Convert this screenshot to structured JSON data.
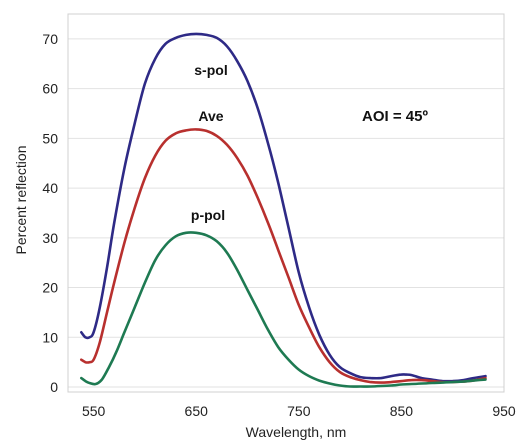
{
  "chart_data": {
    "type": "line",
    "title": "",
    "xlabel": "Wavelength, nm",
    "ylabel": "Percent reflection",
    "xlim": [
      525,
      950
    ],
    "ylim": [
      -1,
      75
    ],
    "x_ticks": [
      550,
      650,
      750,
      850,
      950
    ],
    "y_ticks": [
      0,
      10,
      20,
      30,
      40,
      50,
      60,
      70
    ],
    "grid": "horizontal",
    "annotation": "AOI = 45º",
    "series": [
      {
        "name": "s-pol",
        "color": "#2e2a86",
        "x": [
          538,
          542,
          546,
          550,
          556,
          563,
          570,
          580,
          590,
          600,
          610,
          620,
          630,
          640,
          650,
          660,
          670,
          680,
          690,
          700,
          710,
          720,
          730,
          740,
          750,
          760,
          770,
          780,
          790,
          800,
          810,
          820,
          830,
          840,
          850,
          855,
          860,
          870,
          880,
          890,
          900,
          910,
          920,
          932
        ],
        "y": [
          11,
          10,
          10,
          11,
          16,
          24,
          33,
          44,
          53,
          61,
          66,
          69,
          70.2,
          70.8,
          71,
          70.8,
          70.2,
          68.5,
          65.5,
          61.5,
          56,
          49,
          41,
          32,
          23,
          16,
          10.5,
          6.5,
          4,
          2.8,
          2,
          1.8,
          1.8,
          2.2,
          2.5,
          2.5,
          2.4,
          1.8,
          1.5,
          1.2,
          1.2,
          1.4,
          1.8,
          2.2
        ]
      },
      {
        "name": "Ave",
        "color": "#b8302e",
        "x": [
          538,
          542,
          546,
          550,
          556,
          563,
          570,
          580,
          590,
          600,
          610,
          620,
          630,
          640,
          650,
          660,
          670,
          680,
          690,
          700,
          710,
          720,
          730,
          740,
          750,
          760,
          770,
          780,
          790,
          800,
          810,
          820,
          830,
          840,
          850,
          860,
          870,
          880,
          890,
          900,
          910,
          920,
          932
        ],
        "y": [
          5.5,
          5,
          5,
          5.5,
          9,
          15,
          21,
          29,
          36,
          42,
          46.5,
          49.5,
          51,
          51.6,
          51.8,
          51.5,
          50.5,
          48.7,
          46,
          42.5,
          38,
          33,
          27.5,
          22,
          16.5,
          12,
          8,
          5,
          3,
          2,
          1.4,
          1,
          0.9,
          1,
          1.2,
          1.4,
          1.4,
          1.2,
          1,
          1,
          1.1,
          1.3,
          1.8
        ]
      },
      {
        "name": "p-pol",
        "color": "#1e7a52",
        "x": [
          538,
          542,
          546,
          552,
          558,
          565,
          572,
          580,
          590,
          600,
          610,
          620,
          630,
          640,
          650,
          660,
          670,
          680,
          690,
          700,
          710,
          720,
          730,
          740,
          750,
          760,
          770,
          780,
          790,
          800,
          810,
          820,
          830,
          840,
          850,
          860,
          870,
          880,
          890,
          900,
          910,
          920,
          932
        ],
        "y": [
          1.8,
          1.2,
          0.8,
          0.6,
          1.5,
          4,
          7,
          11,
          16,
          21,
          25.5,
          28.5,
          30.3,
          31,
          31,
          30.5,
          29.3,
          27,
          23.5,
          19.5,
          15.5,
          11.5,
          8,
          5.5,
          3.5,
          2.2,
          1.3,
          0.7,
          0.3,
          0.1,
          0.1,
          0.1,
          0.2,
          0.3,
          0.5,
          0.6,
          0.7,
          0.8,
          0.9,
          1,
          1.1,
          1.3,
          1.5
        ]
      }
    ]
  }
}
